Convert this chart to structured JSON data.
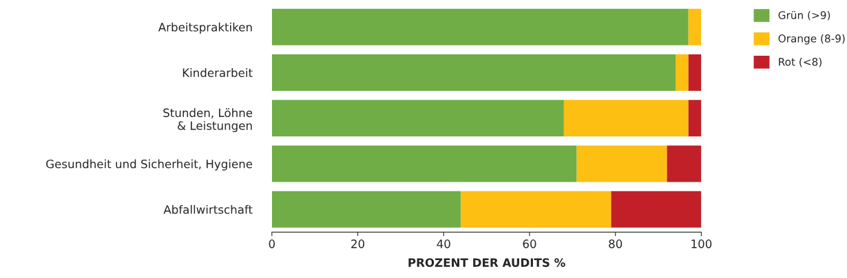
{
  "chart_data": {
    "type": "bar",
    "orientation": "horizontal",
    "stacked": true,
    "xlabel": "PROZENT DER AUDITS %",
    "categories": [
      "Arbeitspraktiken",
      "Kinderarbeit",
      "Stunden, Löhne\n& Leistungen",
      "Gesundheit und Sicherheit, Hygiene",
      "Abfallwirtschaft"
    ],
    "series": [
      {
        "name": "Grün (>9)",
        "color": "#70ad47",
        "values": [
          97,
          94,
          68,
          71,
          44
        ]
      },
      {
        "name": "Orange (8-9)",
        "color": "#fcbf12",
        "values": [
          3,
          3,
          29,
          21,
          35
        ]
      },
      {
        "name": "Rot (<8)",
        "color": "#c22028",
        "values": [
          null,
          3,
          3,
          8,
          21
        ]
      }
    ],
    "xlim": [
      0,
      100
    ],
    "xticks": [
      0,
      20,
      40,
      60,
      80,
      100
    ],
    "grid": false,
    "legend": "top right"
  }
}
